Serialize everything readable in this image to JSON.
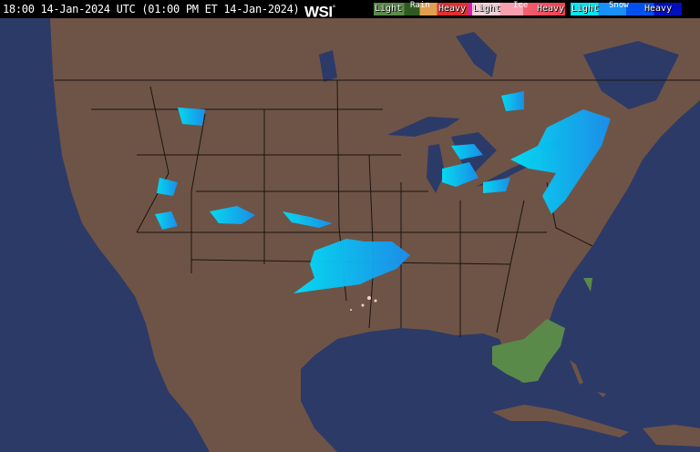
{
  "header": {
    "timestamp": "18:00 14-Jan-2024 UTC  (01:00 PM ET 14-Jan-2024)",
    "logo": "WSI",
    "logo_mark": "°"
  },
  "legend": {
    "rain": {
      "title": "Rain",
      "light": "Light",
      "heavy": "Heavy",
      "colors": [
        "#5a8a4a",
        "#2e5a22",
        "#e0a050",
        "#e03030",
        "#d020c0"
      ]
    },
    "ice": {
      "title": "Ice",
      "light": "Light",
      "heavy": "Heavy",
      "colors": [
        "#f8d0d8",
        "#f8a0b0",
        "#f06070",
        "#f04050"
      ]
    },
    "snow": {
      "title": "Snow",
      "light": "Light",
      "heavy": "Heavy",
      "colors": [
        "#00e8f8",
        "#1890f8",
        "#0050f0",
        "#0010c0"
      ]
    }
  },
  "map": {
    "land_color": "#6e5446",
    "water_color": "#2c3a68",
    "border_color": "#1a1410"
  }
}
